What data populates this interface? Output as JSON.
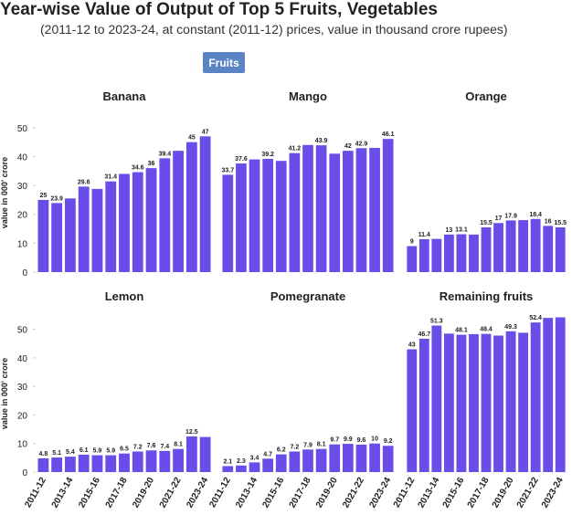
{
  "title": "Year-wise Value of Output of Top 5 Fruits, Vegetables",
  "subtitle": "(2011-12 to 2023-24, at constant (2011-12) prices, value in thousand crore rupees)",
  "button": "Fruits",
  "chart_data": [
    {
      "type": "bar",
      "title": "Banana",
      "color": "#6a4de8",
      "ylim": [
        0,
        55
      ],
      "yticks": [
        0,
        10,
        20,
        30,
        40,
        50
      ],
      "ylabel": "value in 000' crore",
      "values": [
        25,
        23.9,
        25.5,
        29.6,
        28.8,
        31.4,
        34,
        34.6,
        36,
        39.4,
        42,
        45,
        47
      ],
      "value_labels": [
        "25",
        "23.9",
        null,
        "29.6",
        null,
        "31.4",
        null,
        "34.6",
        "36",
        "39.4",
        null,
        "45",
        "47"
      ]
    },
    {
      "type": "bar",
      "title": "Mango",
      "color": "#6a4de8",
      "ylim": [
        0,
        55
      ],
      "values": [
        33.7,
        37.6,
        39,
        39.2,
        38.5,
        41.2,
        44,
        43.9,
        41,
        42,
        42.9,
        43,
        46.1
      ],
      "value_labels": [
        "33.7",
        "37.6",
        null,
        "39.2",
        null,
        "41.2",
        null,
        "43.9",
        null,
        "42",
        "42.9",
        null,
        "46.1"
      ]
    },
    {
      "type": "bar",
      "title": "Orange",
      "color": "#6a4de8",
      "ylim": [
        0,
        55
      ],
      "values": [
        9,
        11.4,
        11.5,
        13,
        13.1,
        13,
        15.5,
        17,
        17.9,
        18,
        18.4,
        16,
        15.5
      ],
      "value_labels": [
        "9",
        "11.4",
        null,
        "13",
        "13.1",
        null,
        "15.5",
        "17",
        "17.9",
        null,
        "18.4",
        "16",
        "15.5"
      ]
    },
    {
      "type": "bar",
      "title": "Lemon",
      "color": "#6a4de8",
      "ylim": [
        0,
        55
      ],
      "yticks": [
        0,
        10,
        20,
        30,
        40,
        50
      ],
      "ylabel": "value in 000' crore",
      "categories": [
        "2011-12",
        null,
        "2013-14",
        null,
        "2015-16",
        null,
        "2017-18",
        null,
        "2019-20",
        null,
        "2021-22",
        null,
        "2023-24"
      ],
      "values": [
        4.8,
        5.1,
        5.4,
        6.1,
        5.9,
        5.9,
        6.5,
        7.2,
        7.6,
        7.4,
        8.1,
        12.5,
        12.3
      ],
      "value_labels": [
        "4.8",
        "5.1",
        "5.4",
        "6.1",
        "5.9",
        "5.9",
        "6.5",
        "7.2",
        "7.6",
        "7.4",
        "8.1",
        "12.5",
        null
      ]
    },
    {
      "type": "bar",
      "title": "Pomegranate",
      "color": "#6a4de8",
      "ylim": [
        0,
        55
      ],
      "categories": [
        "2011-12",
        null,
        "2013-14",
        null,
        "2015-16",
        null,
        "2017-18",
        null,
        "2019-20",
        null,
        "2021-22",
        null,
        "2023-24"
      ],
      "values": [
        2.1,
        2.3,
        3.4,
        4.7,
        6.2,
        7.2,
        7.9,
        8.1,
        9.7,
        9.9,
        9.6,
        10,
        9.2
      ],
      "value_labels": [
        "2.1",
        "2.3",
        "3.4",
        "4.7",
        "6.2",
        "7.2",
        "7.9",
        "8.1",
        "9.7",
        "9.9",
        "9.6",
        "10",
        "9.2"
      ]
    },
    {
      "type": "bar",
      "title": "Remaining fruits",
      "color": "#6a4de8",
      "ylim": [
        0,
        55
      ],
      "categories": [
        "2011-12",
        null,
        "2013-14",
        null,
        "2015-16",
        null,
        "2017-18",
        null,
        "2019-20",
        null,
        "2021-22",
        null,
        "2023-24"
      ],
      "values": [
        43,
        46.7,
        51.3,
        48.5,
        48.1,
        48.3,
        48.4,
        47.8,
        49.3,
        48.8,
        52.4,
        54,
        54.2
      ],
      "value_labels": [
        "43",
        "46.7",
        "51.3",
        null,
        "48.1",
        null,
        "48.4",
        null,
        "49.3",
        null,
        "52.4",
        null,
        null
      ]
    }
  ]
}
